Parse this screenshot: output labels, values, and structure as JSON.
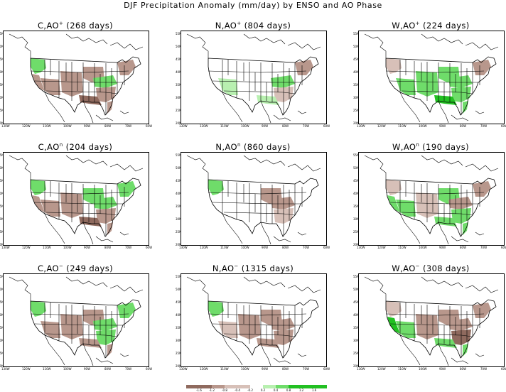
{
  "title": "DJF Precipitation Anomaly (mm/day) by ENSO and AO Phase",
  "colors": {
    "dry_strong": "#8f6a5e",
    "dry": "#b8978c",
    "dry_light": "#d7c0b8",
    "wet_light": "#b8f0b0",
    "wet": "#6fdc6a",
    "wet_strong": "#22c022",
    "outline": "#000000"
  },
  "longitude_labels": [
    "130W",
    "120W",
    "110W",
    "100W",
    "90W",
    "80W",
    "70W",
    "60W"
  ],
  "latitude_labels": [
    "55N",
    "50N",
    "45N",
    "40N",
    "35N",
    "30N",
    "25N",
    "20N"
  ],
  "colorbar": {
    "labels": [
      "-1.6",
      "-1.2",
      "-0.8",
      "-0.4",
      "-0.2",
      "0.2",
      "0.4",
      "0.8",
      "1.2",
      "1.6"
    ]
  },
  "panels": [
    {
      "enso": "C",
      "ao": "+",
      "days": "268 days",
      "regions": {
        "northwest": "wet",
        "california": "dry",
        "southwest": "dry",
        "great_plains": "dry",
        "midwest": "dry",
        "ohio_valley": "wet",
        "southeast": "dry",
        "florida": "dry",
        "northeast": "dry",
        "gulf_coast": "dry_strong"
      }
    },
    {
      "enso": "N",
      "ao": "+",
      "days": "804 days",
      "regions": {
        "northwest": "none",
        "california": "none",
        "southwest": "wet_light",
        "great_plains": "none",
        "midwest": "none",
        "ohio_valley": "wet",
        "southeast": "dry_light",
        "florida": "none",
        "northeast": "dry",
        "gulf_coast": "wet_light"
      }
    },
    {
      "enso": "W",
      "ao": "+",
      "days": "224 days",
      "regions": {
        "northwest": "dry_light",
        "california": "none",
        "southwest": "wet",
        "great_plains": "wet",
        "midwest": "wet",
        "ohio_valley": "wet",
        "southeast": "wet",
        "florida": "wet",
        "northeast": "dry",
        "gulf_coast": "wet_strong"
      }
    },
    {
      "enso": "C",
      "ao": "n",
      "days": "204 days",
      "regions": {
        "northwest": "wet",
        "california": "dry",
        "southwest": "dry",
        "great_plains": "dry",
        "midwest": "wet",
        "ohio_valley": "wet",
        "southeast": "dry",
        "florida": "dry",
        "northeast": "wet",
        "gulf_coast": "dry_strong"
      }
    },
    {
      "enso": "N",
      "ao": "n",
      "days": "860 days",
      "regions": {
        "northwest": "wet",
        "california": "none",
        "southwest": "none",
        "great_plains": "none",
        "midwest": "dry",
        "ohio_valley": "dry",
        "southeast": "dry_light",
        "florida": "none",
        "northeast": "none",
        "gulf_coast": "none"
      }
    },
    {
      "enso": "W",
      "ao": "n",
      "days": "190 days",
      "regions": {
        "northwest": "dry_light",
        "california": "wet",
        "southwest": "wet",
        "great_plains": "dry_light",
        "midwest": "wet",
        "ohio_valley": "dry",
        "southeast": "wet",
        "florida": "wet",
        "northeast": "dry",
        "gulf_coast": "wet"
      }
    },
    {
      "enso": "C",
      "ao": "−",
      "days": "249 days",
      "regions": {
        "northwest": "wet",
        "california": "none",
        "southwest": "dry",
        "great_plains": "dry",
        "midwest": "dry",
        "ohio_valley": "wet",
        "southeast": "wet",
        "florida": "dry",
        "northeast": "wet",
        "gulf_coast": "dry"
      }
    },
    {
      "enso": "N",
      "ao": "−",
      "days": "1315 days",
      "regions": {
        "northwest": "wet",
        "california": "none",
        "southwest": "dry_light",
        "great_plains": "dry",
        "midwest": "dry",
        "ohio_valley": "dry",
        "southeast": "dry",
        "florida": "none",
        "northeast": "none",
        "gulf_coast": "dry"
      }
    },
    {
      "enso": "W",
      "ao": "−",
      "days": "308 days",
      "regions": {
        "northwest": "dry_light",
        "california": "wet_strong",
        "southwest": "wet",
        "great_plains": "dry",
        "midwest": "dry",
        "ohio_valley": "dry",
        "southeast": "dry_strong",
        "florida": "wet",
        "northeast": "dry",
        "gulf_coast": "wet"
      }
    }
  ]
}
